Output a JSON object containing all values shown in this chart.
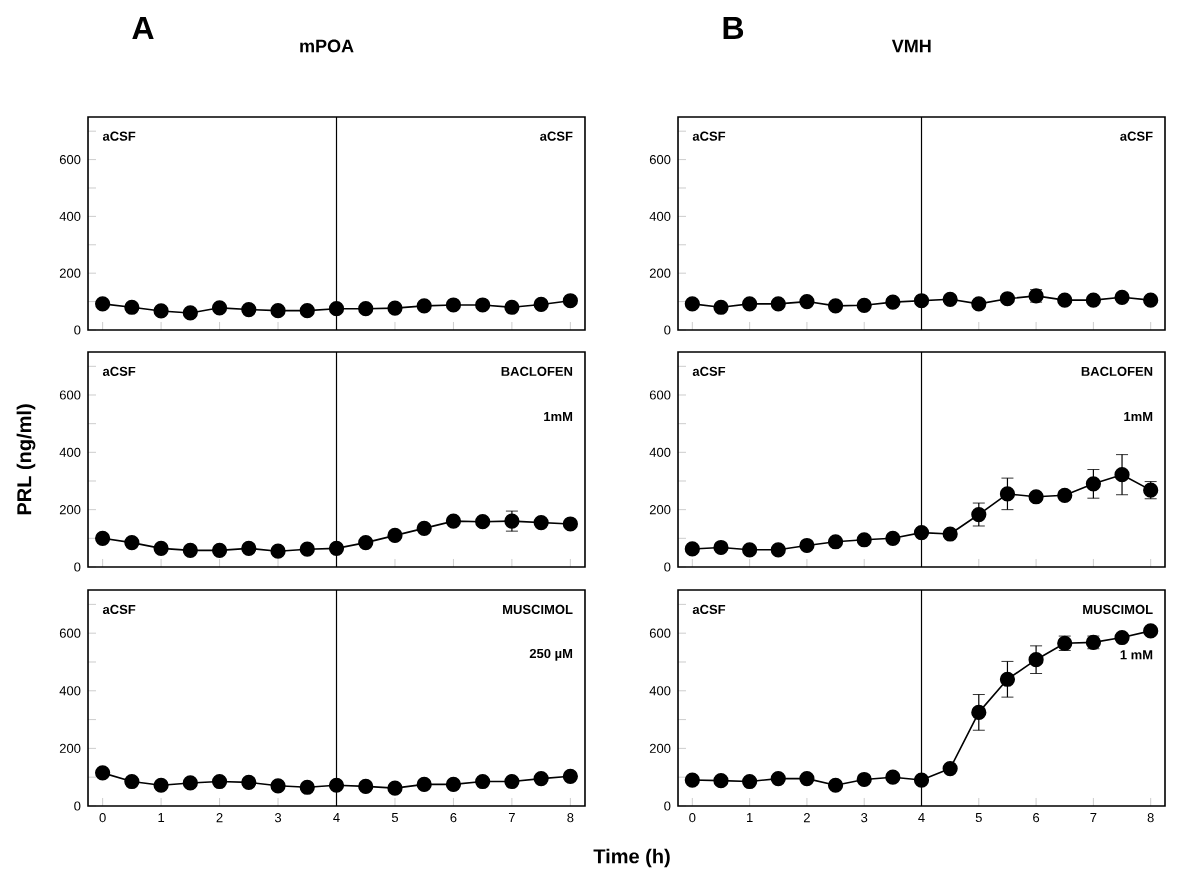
{
  "chart_data": [
    {
      "type": "line",
      "title": "A",
      "subtitle": "mPOA",
      "x": [
        0,
        0.5,
        1,
        1.5,
        2,
        2.5,
        3,
        3.5,
        4,
        4.5,
        5,
        5.5,
        6,
        6.5,
        7,
        7.5,
        8
      ],
      "values": [
        92,
        80,
        67,
        60,
        78,
        72,
        68,
        68,
        75,
        75,
        77,
        85,
        88,
        88,
        80,
        90,
        103
      ],
      "color": "#000000",
      "marker": "circle",
      "line_style": "solid",
      "xlim": [
        -0.25,
        8.25
      ],
      "ylim": [
        0,
        750
      ],
      "xticks": [
        0,
        1,
        2,
        3,
        4,
        5,
        6,
        7,
        8
      ],
      "yticks": [
        0,
        {
          "value": 100,
          "label": null
        },
        200,
        {
          "value": 300,
          "label": null
        },
        400,
        {
          "value": 500,
          "label": null
        },
        600,
        {
          "value": 700,
          "label": null
        }
      ],
      "tick_labels": "y",
      "ref_lines": [
        {
          "axis": "x",
          "value": 4
        }
      ],
      "annotations": [
        "aCSF",
        "aCSF"
      ]
    },
    {
      "type": "line",
      "title": "B",
      "subtitle": "VMH",
      "x": [
        0,
        0.5,
        1,
        1.5,
        2,
        2.5,
        3,
        3.5,
        4,
        4.5,
        5,
        5.5,
        6,
        6.5,
        7,
        7.5,
        8
      ],
      "values": [
        92,
        80,
        92,
        92,
        100,
        85,
        87,
        98,
        103,
        108,
        92,
        110,
        120,
        105,
        105,
        115,
        105
      ],
      "errors": [
        null,
        null,
        null,
        null,
        null,
        null,
        null,
        null,
        null,
        null,
        null,
        null,
        22,
        null,
        null,
        null,
        null
      ],
      "color": "#000000",
      "marker": "circle",
      "line_style": "solid",
      "xlim": [
        -0.25,
        8.25
      ],
      "ylim": [
        0,
        750
      ],
      "xticks": [
        0,
        1,
        2,
        3,
        4,
        5,
        6,
        7,
        8
      ],
      "yticks": [
        0,
        {
          "value": 100,
          "label": null
        },
        200,
        {
          "value": 300,
          "label": null
        },
        400,
        {
          "value": 500,
          "label": null
        },
        600,
        {
          "value": 700,
          "label": null
        }
      ],
      "tick_labels": "y",
      "ref_lines": [
        {
          "axis": "x",
          "value": 4
        }
      ],
      "annotations": [
        "aCSF",
        "aCSF"
      ]
    },
    {
      "type": "line",
      "ylabel": "PRL (ng/ml)",
      "x": [
        0,
        0.5,
        1,
        1.5,
        2,
        2.5,
        3,
        3.5,
        4,
        4.5,
        5,
        5.5,
        6,
        6.5,
        7,
        7.5,
        8
      ],
      "values": [
        100,
        85,
        65,
        58,
        58,
        65,
        55,
        62,
        65,
        85,
        110,
        135,
        160,
        158,
        160,
        155,
        150
      ],
      "errors": [
        null,
        null,
        null,
        null,
        null,
        null,
        null,
        null,
        null,
        null,
        null,
        null,
        null,
        null,
        35,
        null,
        null
      ],
      "color": "#000000",
      "marker": "circle",
      "line_style": "solid",
      "xlim": [
        -0.25,
        8.25
      ],
      "ylim": [
        0,
        750
      ],
      "xticks": [
        0,
        1,
        2,
        3,
        4,
        5,
        6,
        7,
        8
      ],
      "yticks": [
        0,
        {
          "value": 100,
          "label": null
        },
        200,
        {
          "value": 300,
          "label": null
        },
        400,
        {
          "value": 500,
          "label": null
        },
        600,
        {
          "value": 700,
          "label": null
        }
      ],
      "tick_labels": "y",
      "ref_lines": [
        {
          "axis": "x",
          "value": 4
        }
      ],
      "annotations": [
        "aCSF",
        "BACLOFEN",
        "1mM"
      ]
    },
    {
      "type": "line",
      "x": [
        0,
        0.5,
        1,
        1.5,
        2,
        2.5,
        3,
        3.5,
        4,
        4.5,
        5,
        5.5,
        6,
        6.5,
        7,
        7.5,
        8
      ],
      "values": [
        63,
        68,
        60,
        60,
        75,
        88,
        95,
        100,
        120,
        115,
        183,
        255,
        245,
        250,
        290,
        322,
        268
      ],
      "errors": [
        null,
        null,
        null,
        null,
        null,
        null,
        null,
        null,
        null,
        null,
        40,
        55,
        null,
        15,
        50,
        70,
        30
      ],
      "color": "#000000",
      "marker": "circle",
      "line_style": "solid",
      "xlim": [
        -0.25,
        8.25
      ],
      "ylim": [
        0,
        750
      ],
      "xticks": [
        0,
        1,
        2,
        3,
        4,
        5,
        6,
        7,
        8
      ],
      "yticks": [
        0,
        {
          "value": 100,
          "label": null
        },
        200,
        {
          "value": 300,
          "label": null
        },
        400,
        {
          "value": 500,
          "label": null
        },
        600,
        {
          "value": 700,
          "label": null
        }
      ],
      "tick_labels": "y",
      "ref_lines": [
        {
          "axis": "x",
          "value": 4
        }
      ],
      "annotations": [
        "aCSF",
        "BACLOFEN",
        "1mM"
      ]
    },
    {
      "type": "line",
      "xlabel": "Time (h)",
      "x": [
        0,
        0.5,
        1,
        1.5,
        2,
        2.5,
        3,
        3.5,
        4,
        4.5,
        5,
        5.5,
        6,
        6.5,
        7,
        7.5,
        8
      ],
      "values": [
        115,
        85,
        72,
        80,
        85,
        82,
        70,
        65,
        72,
        68,
        62,
        75,
        75,
        85,
        85,
        95,
        103
      ],
      "color": "#000000",
      "marker": "circle",
      "line_style": "solid",
      "xlim": [
        -0.25,
        8.25
      ],
      "ylim": [
        0,
        750
      ],
      "xticks": [
        0,
        1,
        2,
        3,
        4,
        5,
        6,
        7,
        8
      ],
      "yticks": [
        0,
        {
          "value": 100,
          "label": null
        },
        200,
        {
          "value": 300,
          "label": null
        },
        400,
        {
          "value": 500,
          "label": null
        },
        600,
        {
          "value": 700,
          "label": null
        }
      ],
      "ref_lines": [
        {
          "axis": "x",
          "value": 4
        }
      ],
      "annotations": [
        "aCSF",
        "MUSCIMOL",
        "250 µM"
      ]
    },
    {
      "type": "line",
      "x": [
        0,
        0.5,
        1,
        1.5,
        2,
        2.5,
        3,
        3.5,
        4,
        4.5,
        5,
        5.5,
        6,
        6.5,
        7,
        7.5,
        8
      ],
      "values": [
        90,
        88,
        85,
        95,
        95,
        72,
        92,
        100,
        90,
        130,
        325,
        440,
        508,
        565,
        568,
        585,
        608
      ],
      "errors": [
        null,
        null,
        null,
        null,
        null,
        null,
        null,
        null,
        null,
        null,
        62,
        62,
        48,
        25,
        22,
        null,
        null
      ],
      "color": "#000000",
      "marker": "circle",
      "line_style": "solid",
      "xlim": [
        -0.25,
        8.25
      ],
      "ylim": [
        0,
        750
      ],
      "xticks": [
        0,
        1,
        2,
        3,
        4,
        5,
        6,
        7,
        8
      ],
      "yticks": [
        0,
        {
          "value": 100,
          "label": null
        },
        200,
        {
          "value": 300,
          "label": null
        },
        400,
        {
          "value": 500,
          "label": null
        },
        600,
        {
          "value": 700,
          "label": null
        }
      ],
      "ref_lines": [
        {
          "axis": "x",
          "value": 4
        }
      ],
      "annotations": [
        "aCSF",
        "MUSCIMOL",
        "1 mM"
      ]
    }
  ]
}
